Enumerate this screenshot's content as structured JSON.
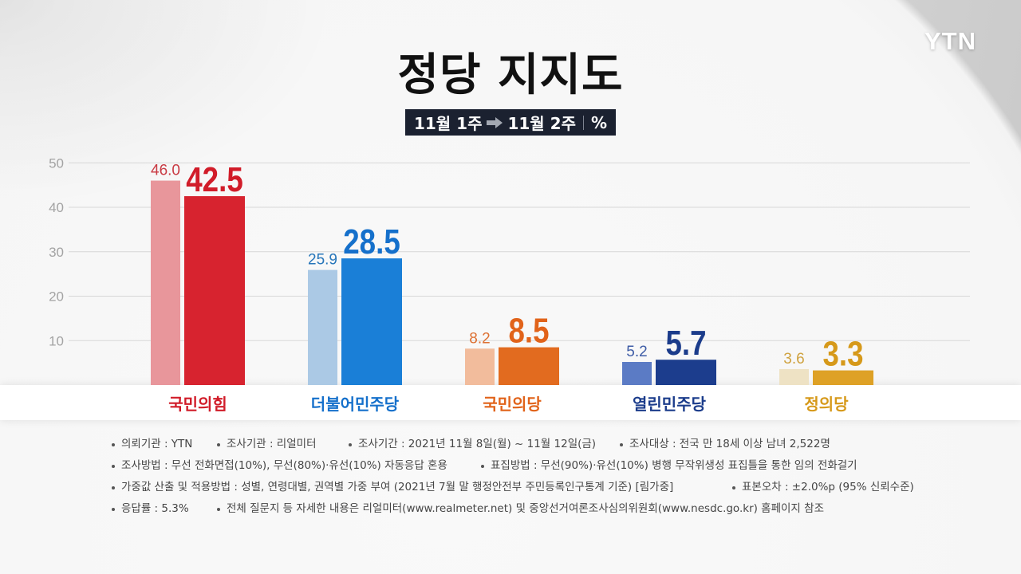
{
  "logo": {
    "text": "YTN"
  },
  "icons": {
    "legend_arrow": "arrow-right-icon"
  },
  "chart_data": {
    "type": "bar",
    "title": "정당 지지도",
    "unit": "%",
    "categories": [
      "국민의힘",
      "더불어민주당",
      "국민의당",
      "열린민주당",
      "정의당"
    ],
    "series": [
      {
        "name": "11월 1주",
        "values": [
          46.0,
          25.9,
          8.2,
          5.2,
          3.6
        ]
      },
      {
        "name": "11월 2주",
        "values": [
          42.5,
          28.5,
          8.5,
          5.7,
          3.3
        ]
      }
    ],
    "yticks": [
      50,
      40,
      30,
      20,
      10
    ],
    "ylim": [
      0,
      50
    ],
    "grid": true,
    "legend": "top",
    "colors": [
      {
        "light": "#e8969b",
        "dark": "#d7232f",
        "light_text": "#c93a43",
        "dark_text": "#d11c29"
      },
      {
        "light": "#abc9e5",
        "dark": "#1a7fd7",
        "light_text": "#2776ba",
        "dark_text": "#1570cb"
      },
      {
        "light": "#f2bc9c",
        "dark": "#e26b1f",
        "light_text": "#dd7133",
        "dark_text": "#e1631a"
      },
      {
        "light": "#5b7bc5",
        "dark": "#1c3d8d",
        "light_text": "#3e5ca6",
        "dark_text": "#1b3c8b"
      },
      {
        "light": "#eee2c4",
        "dark": "#dea126",
        "light_text": "#cfa23f",
        "dark_text": "#d6991a"
      }
    ]
  },
  "footnotes": [
    [
      "의뢰기관 : YTN",
      "조사기관 : 리얼미터",
      "조사기간 : 2021년 11월 8일(월) ~ 11월 12일(금)",
      "조사대상 : 전국 만 18세 이상 남녀 2,522명"
    ],
    [
      "조사방법 : 무선 전화면접(10%), 무선(80%)·유선(10%) 자동응답 혼용",
      "표집방법 : 무선(90%)·유선(10%) 병행 무작위생성 표집틀을 통한 임의 전화걸기"
    ],
    [
      "가중값 산출 및 적용방법 : 성별, 연령대별, 권역별 가중 부여 (2021년 7월 말 행정안전부 주민등록인구통계 기준) [림가중]",
      "표본오차 : ±2.0%p (95% 신뢰수준)"
    ],
    [
      "응답률 : 5.3%",
      "전체 질문지 등 자세한 내용은 리얼미터(www.realmeter.net) 및 중앙선거여론조사심의위원회(www.nesdc.go.kr) 홈페이지 참조"
    ]
  ]
}
